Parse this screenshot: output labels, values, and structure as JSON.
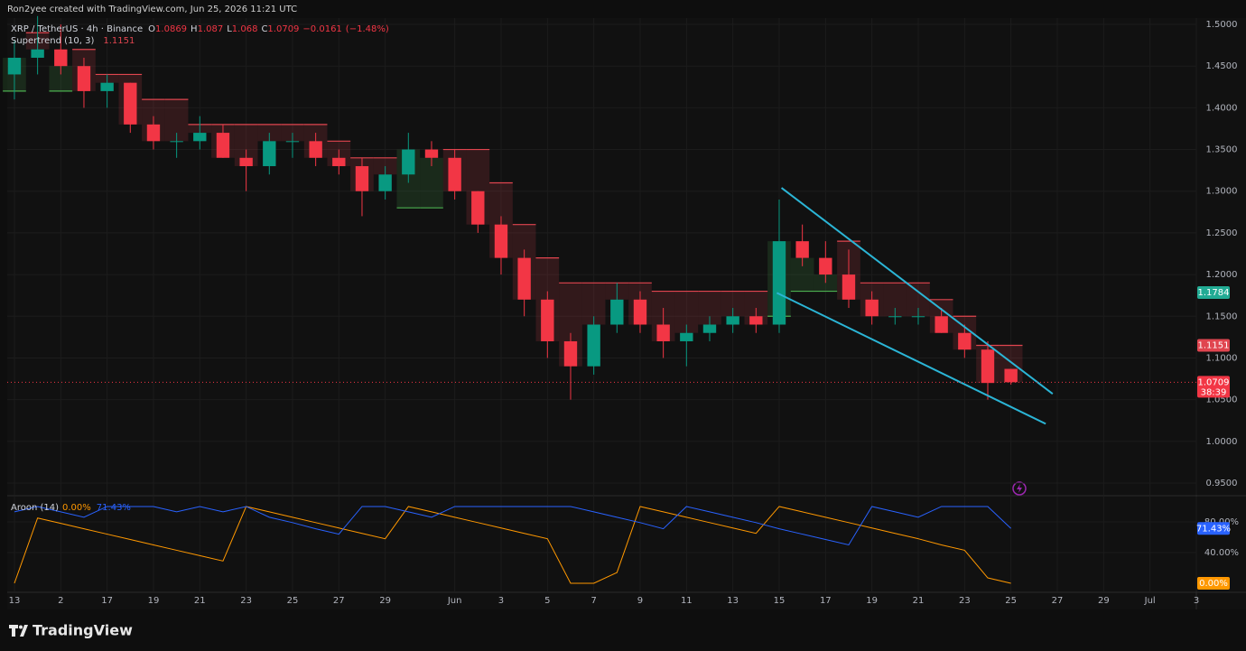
{
  "chart_data": [
    {
      "type": "candlestick",
      "attribution": "Ron2yee created with TradingView.com, Jun 25, 2026 11:21 UTC",
      "symbol": "XRP / TetherUS · 4h · Binance",
      "ohlc_keys": [
        "O",
        "H",
        "L",
        "C"
      ],
      "change": {
        "value": -0.0161,
        "label": "−0.0161"
      },
      "change_pct": {
        "value": -1.48,
        "label": "(−1.48%)"
      },
      "brand": "TradingView",
      "up_color": "#089981",
      "down_color": "#f23645",
      "x": [
        0,
        1,
        2,
        3,
        4,
        5,
        6,
        7,
        8,
        9,
        10,
        11,
        12,
        13,
        14,
        15,
        16,
        17,
        18,
        19,
        20,
        21,
        22,
        23,
        24,
        25,
        26,
        27,
        28,
        29,
        30,
        31,
        32,
        33,
        34,
        35,
        36,
        37,
        38,
        39,
        40,
        41,
        42,
        43
      ],
      "open": [
        1.44,
        1.46,
        1.47,
        1.45,
        1.42,
        1.43,
        1.38,
        1.36,
        1.36,
        1.37,
        1.34,
        1.33,
        1.36,
        1.36,
        1.34,
        1.33,
        1.3,
        1.32,
        1.35,
        1.34,
        1.3,
        1.26,
        1.22,
        1.17,
        1.12,
        1.09,
        1.14,
        1.17,
        1.14,
        1.12,
        1.13,
        1.14,
        1.15,
        1.14,
        1.24,
        1.22,
        1.2,
        1.17,
        1.15,
        1.15,
        1.15,
        1.13,
        1.11,
        1.0869
      ],
      "high": [
        1.48,
        1.51,
        1.5,
        1.46,
        1.44,
        1.43,
        1.39,
        1.37,
        1.39,
        1.38,
        1.35,
        1.37,
        1.37,
        1.37,
        1.35,
        1.34,
        1.33,
        1.37,
        1.36,
        1.35,
        1.3,
        1.27,
        1.23,
        1.18,
        1.13,
        1.15,
        1.19,
        1.18,
        1.16,
        1.14,
        1.15,
        1.16,
        1.16,
        1.29,
        1.26,
        1.24,
        1.23,
        1.18,
        1.16,
        1.16,
        1.16,
        1.14,
        1.12,
        1.087
      ],
      "low": [
        1.41,
        1.44,
        1.44,
        1.4,
        1.4,
        1.37,
        1.35,
        1.34,
        1.35,
        1.34,
        1.3,
        1.32,
        1.34,
        1.33,
        1.32,
        1.27,
        1.29,
        1.31,
        1.33,
        1.29,
        1.25,
        1.2,
        1.15,
        1.1,
        1.05,
        1.08,
        1.13,
        1.13,
        1.1,
        1.09,
        1.12,
        1.13,
        1.13,
        1.13,
        1.21,
        1.19,
        1.16,
        1.14,
        1.14,
        1.14,
        1.13,
        1.1,
        1.05,
        1.068
      ],
      "close": [
        1.46,
        1.47,
        1.45,
        1.42,
        1.43,
        1.38,
        1.36,
        1.36,
        1.37,
        1.34,
        1.33,
        1.36,
        1.36,
        1.34,
        1.33,
        1.3,
        1.32,
        1.35,
        1.34,
        1.3,
        1.26,
        1.22,
        1.17,
        1.12,
        1.09,
        1.14,
        1.17,
        1.14,
        1.12,
        1.13,
        1.14,
        1.15,
        1.14,
        1.24,
        1.22,
        1.2,
        1.17,
        1.15,
        1.15,
        1.15,
        1.13,
        1.11,
        1.07,
        1.0709
      ],
      "countdown": "38:39",
      "supertrend": {
        "name": "Supertrend (10, 3)",
        "series": [
          {
            "color": "#4caf50",
            "values": [
              1.42,
              null,
              1.42,
              null,
              null,
              null,
              null,
              null,
              null,
              null,
              null,
              null,
              null,
              null,
              null,
              null,
              null,
              1.28,
              1.28,
              null,
              null,
              null,
              null,
              null,
              null,
              null,
              null,
              null,
              null,
              null,
              null,
              null,
              null,
              1.15,
              1.18,
              1.18,
              null,
              null,
              null,
              null,
              null,
              null,
              null,
              null
            ]
          },
          {
            "color": "#e0454f",
            "values": [
              null,
              1.49,
              null,
              1.47,
              1.44,
              1.44,
              1.41,
              1.41,
              1.38,
              1.38,
              1.38,
              1.38,
              1.38,
              1.38,
              1.36,
              1.34,
              1.34,
              null,
              null,
              1.35,
              1.35,
              1.31,
              1.26,
              1.22,
              1.19,
              1.19,
              1.19,
              1.19,
              1.18,
              1.18,
              1.18,
              1.18,
              1.18,
              null,
              null,
              null,
              1.24,
              1.19,
              1.19,
              1.19,
              1.17,
              1.15,
              1.1151,
              1.1151
            ]
          }
        ]
      },
      "price_tags": [
        {
          "value": 1.1784,
          "color": "#22ab94"
        }
      ],
      "trendlines": [
        {
          "color": "#2bb5d6",
          "x": [
            33.1,
            44.8
          ],
          "y": [
            1.304,
            1.057
          ]
        },
        {
          "color": "#2bb5d6",
          "x": [
            32.9,
            44.5
          ],
          "y": [
            1.178,
            1.021
          ]
        }
      ],
      "xlim": [
        -0.31,
        51
      ],
      "ylim": [
        0.9359,
        1.5076
      ],
      "yticks": [
        {
          "value": 0.95,
          "label": "0.9500"
        },
        {
          "value": 1.0,
          "label": "1.0000"
        },
        {
          "value": 1.05,
          "label": "1.0500"
        },
        {
          "value": 1.1,
          "label": "1.1000"
        },
        {
          "value": 1.15,
          "label": "1.1500"
        },
        {
          "value": 1.2,
          "label": "1.2000"
        },
        {
          "value": 1.25,
          "label": "1.2500"
        },
        {
          "value": 1.3,
          "label": "1.3000"
        },
        {
          "value": 1.35,
          "label": "1.3500"
        },
        {
          "value": 1.4,
          "label": "1.4000"
        },
        {
          "value": 1.45,
          "label": "1.4500"
        },
        {
          "value": 1.5,
          "label": "1.5000"
        }
      ],
      "grid": true
    },
    {
      "type": "line",
      "title": "Aroon (14)",
      "x": [
        0,
        1,
        2,
        3,
        4,
        5,
        6,
        7,
        8,
        9,
        10,
        11,
        12,
        13,
        14,
        15,
        16,
        17,
        18,
        19,
        20,
        21,
        22,
        23,
        24,
        25,
        26,
        27,
        28,
        29,
        30,
        31,
        32,
        33,
        34,
        35,
        36,
        37,
        38,
        39,
        40,
        41,
        42,
        43
      ],
      "series": [
        {
          "color": "#ff9800",
          "values": [
            0,
            85,
            78,
            71,
            64,
            57,
            50,
            43,
            36,
            29,
            100,
            93,
            86,
            79,
            72,
            65,
            58,
            100,
            93,
            86,
            79,
            72,
            65,
            58,
            0,
            0,
            14,
            100,
            93,
            86,
            79,
            72,
            65,
            100,
            93,
            86,
            79,
            72,
            65,
            58,
            50,
            43,
            7,
            0
          ],
          "value_labels": [
            null,
            null,
            null,
            null,
            null,
            null,
            null,
            null,
            null,
            null,
            null,
            null,
            null,
            null,
            null,
            null,
            null,
            null,
            null,
            null,
            null,
            null,
            null,
            null,
            null,
            null,
            null,
            null,
            null,
            null,
            null,
            null,
            null,
            null,
            null,
            null,
            null,
            null,
            null,
            null,
            null,
            null,
            null,
            "0.00%"
          ]
        },
        {
          "color": "#2962ff",
          "values": [
            93,
            100,
            93,
            86,
            100,
            100,
            100,
            93,
            100,
            93,
            100,
            86,
            79,
            71,
            64,
            100,
            100,
            93,
            86,
            100,
            100,
            100,
            100,
            100,
            100,
            93,
            86,
            79,
            71,
            100,
            93,
            86,
            79,
            71,
            64,
            57,
            50,
            100,
            93,
            86,
            100,
            100,
            100,
            71.43
          ],
          "value_labels": [
            null,
            null,
            null,
            null,
            null,
            null,
            null,
            null,
            null,
            null,
            null,
            null,
            null,
            null,
            null,
            null,
            null,
            null,
            null,
            null,
            null,
            null,
            null,
            null,
            null,
            null,
            null,
            null,
            null,
            null,
            null,
            null,
            null,
            null,
            null,
            null,
            null,
            null,
            null,
            null,
            null,
            null,
            null,
            "71.43%"
          ]
        }
      ],
      "xlim": [
        -0.31,
        51
      ],
      "ylim": [
        -10.6,
        112.9
      ],
      "yticks": [
        {
          "value": 40,
          "label": "40.00%"
        },
        {
          "value": 80,
          "label": "80.00%"
        }
      ],
      "xticks": [
        {
          "value": 0,
          "label": "13"
        },
        2,
        {
          "value": 4,
          "label": "17"
        },
        {
          "value": 6,
          "label": "19"
        },
        {
          "value": 8,
          "label": "21"
        },
        {
          "value": 10,
          "label": "23"
        },
        {
          "value": 12,
          "label": "25"
        },
        {
          "value": 14,
          "label": "27"
        },
        {
          "value": 16,
          "label": "29"
        },
        {
          "value": 19,
          "label": "Jun"
        },
        {
          "value": 21,
          "label": "3"
        },
        {
          "value": 23,
          "label": "5"
        },
        {
          "value": 25,
          "label": "7"
        },
        {
          "value": 27,
          "label": "9"
        },
        {
          "value": 29,
          "label": "11"
        },
        {
          "value": 31,
          "label": "13"
        },
        {
          "value": 33,
          "label": "15"
        },
        {
          "value": 35,
          "label": "17"
        },
        {
          "value": 37,
          "label": "19"
        },
        {
          "value": 39,
          "label": "21"
        },
        {
          "value": 41,
          "label": "23"
        },
        {
          "value": 43,
          "label": "25"
        },
        {
          "value": 45,
          "label": "27"
        },
        {
          "value": 47,
          "label": "29"
        },
        {
          "value": 49,
          "label": "Jul"
        },
        {
          "value": 51,
          "label": "3"
        }
      ],
      "grid": true
    }
  ]
}
